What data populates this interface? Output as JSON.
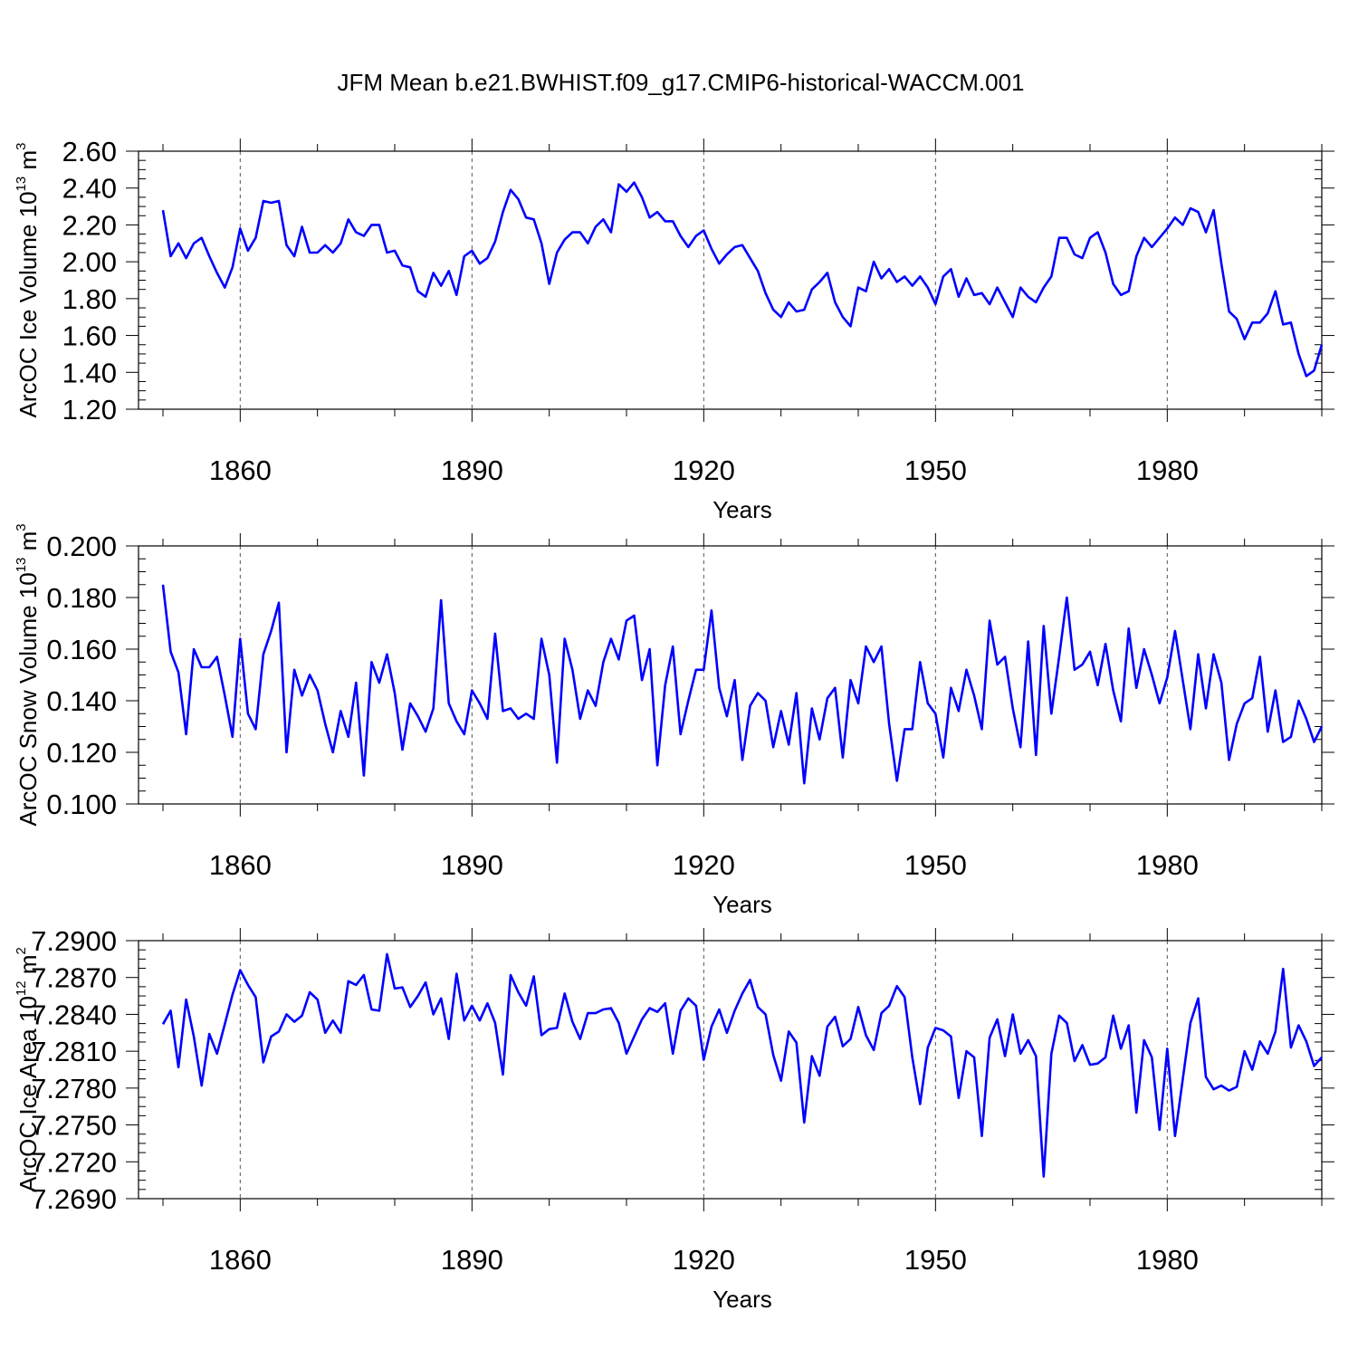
{
  "title": "JFM Mean b.e21.BWHIST.f09_g17.CMIP6-historical-WACCM.001",
  "colors": {
    "line": "#0000ff",
    "axis": "#000000",
    "grid": "#555555"
  },
  "chart_data": [
    {
      "type": "line",
      "ylabel": "ArcOC Ice Volume 10",
      "ylabel_exp": "13",
      "ylabel_unit": "m",
      "ylabel_unit_exp": "3",
      "xlabel": "Years",
      "xlim": [
        1850,
        2000
      ],
      "ylim": [
        1.2,
        2.6
      ],
      "xticks": [
        1860,
        1890,
        1920,
        1950,
        1980
      ],
      "xtick_labels": [
        "1860",
        "1890",
        "1920",
        "1950",
        "1980"
      ],
      "yticks": [
        1.2,
        1.4,
        1.6,
        1.8,
        2.0,
        2.2,
        2.4,
        2.6
      ],
      "ytick_labels": [
        "1.20",
        "1.40",
        "1.60",
        "1.80",
        "2.00",
        "2.20",
        "2.40",
        "2.60"
      ],
      "grid": "dashed vertical at x ticks",
      "x_start": 1850,
      "values": [
        2.28,
        2.03,
        2.1,
        2.02,
        2.1,
        2.13,
        2.03,
        1.94,
        1.86,
        1.97,
        2.18,
        2.06,
        2.13,
        2.33,
        2.32,
        2.33,
        2.09,
        2.03,
        2.19,
        2.05,
        2.05,
        2.09,
        2.05,
        2.1,
        2.23,
        2.16,
        2.14,
        2.2,
        2.2,
        2.05,
        2.06,
        1.98,
        1.97,
        1.84,
        1.81,
        1.94,
        1.87,
        1.95,
        1.82,
        2.03,
        2.06,
        1.99,
        2.02,
        2.11,
        2.27,
        2.39,
        2.34,
        2.24,
        2.23,
        2.1,
        1.88,
        2.05,
        2.12,
        2.16,
        2.16,
        2.1,
        2.19,
        2.23,
        2.16,
        2.42,
        2.38,
        2.43,
        2.35,
        2.24,
        2.27,
        2.22,
        2.22,
        2.14,
        2.08,
        2.14,
        2.17,
        2.07,
        1.99,
        2.04,
        2.08,
        2.09,
        2.02,
        1.95,
        1.83,
        1.74,
        1.7,
        1.78,
        1.73,
        1.74,
        1.85,
        1.89,
        1.94,
        1.78,
        1.7,
        1.65,
        1.86,
        1.84,
        2.0,
        1.91,
        1.96,
        1.89,
        1.92,
        1.87,
        1.92,
        1.86,
        1.77,
        1.92,
        1.96,
        1.81,
        1.91,
        1.82,
        1.83,
        1.77,
        1.86,
        1.78,
        1.7,
        1.86,
        1.81,
        1.78,
        1.86,
        1.92,
        2.13,
        2.13,
        2.04,
        2.02,
        2.13,
        2.16,
        2.05,
        1.88,
        1.82,
        1.84,
        2.03,
        2.13,
        2.08,
        2.13,
        2.18,
        2.24,
        2.2,
        2.29,
        2.27,
        2.16,
        2.28,
        1.99,
        1.73,
        1.69,
        1.58,
        1.67,
        1.67,
        1.72,
        1.84,
        1.66,
        1.67,
        1.5,
        1.38,
        1.41,
        1.55
      ]
    },
    {
      "type": "line",
      "ylabel": "ArcOC Snow Volume 10",
      "ylabel_exp": "13",
      "ylabel_unit": "m",
      "ylabel_unit_exp": "3",
      "xlabel": "Years",
      "xlim": [
        1850,
        2000
      ],
      "ylim": [
        0.1,
        0.2
      ],
      "xticks": [
        1860,
        1890,
        1920,
        1950,
        1980
      ],
      "xtick_labels": [
        "1860",
        "1890",
        "1920",
        "1950",
        "1980"
      ],
      "yticks": [
        0.1,
        0.12,
        0.14,
        0.16,
        0.18,
        0.2
      ],
      "ytick_labels": [
        "0.100",
        "0.120",
        "0.140",
        "0.160",
        "0.180",
        "0.200"
      ],
      "grid": "dashed vertical at x ticks",
      "x_start": 1850,
      "values": [
        0.185,
        0.159,
        0.151,
        0.127,
        0.16,
        0.153,
        0.153,
        0.157,
        0.142,
        0.126,
        0.164,
        0.135,
        0.129,
        0.158,
        0.167,
        0.178,
        0.12,
        0.152,
        0.142,
        0.15,
        0.144,
        0.131,
        0.12,
        0.136,
        0.126,
        0.147,
        0.111,
        0.155,
        0.147,
        0.158,
        0.143,
        0.121,
        0.139,
        0.134,
        0.128,
        0.137,
        0.179,
        0.139,
        0.132,
        0.127,
        0.144,
        0.139,
        0.133,
        0.166,
        0.136,
        0.137,
        0.133,
        0.135,
        0.133,
        0.164,
        0.15,
        0.116,
        0.164,
        0.152,
        0.133,
        0.144,
        0.138,
        0.155,
        0.164,
        0.156,
        0.171,
        0.173,
        0.148,
        0.16,
        0.115,
        0.146,
        0.161,
        0.127,
        0.14,
        0.152,
        0.152,
        0.175,
        0.145,
        0.134,
        0.148,
        0.117,
        0.138,
        0.143,
        0.14,
        0.122,
        0.136,
        0.123,
        0.143,
        0.108,
        0.137,
        0.125,
        0.141,
        0.145,
        0.118,
        0.148,
        0.139,
        0.161,
        0.155,
        0.161,
        0.131,
        0.109,
        0.129,
        0.129,
        0.155,
        0.139,
        0.135,
        0.118,
        0.145,
        0.136,
        0.152,
        0.142,
        0.129,
        0.171,
        0.154,
        0.157,
        0.137,
        0.122,
        0.163,
        0.119,
        0.169,
        0.135,
        0.157,
        0.18,
        0.152,
        0.154,
        0.159,
        0.146,
        0.162,
        0.144,
        0.132,
        0.168,
        0.145,
        0.16,
        0.15,
        0.139,
        0.149,
        0.167,
        0.148,
        0.129,
        0.158,
        0.137,
        0.158,
        0.147,
        0.117,
        0.131,
        0.139,
        0.141,
        0.157,
        0.128,
        0.144,
        0.124,
        0.126,
        0.14,
        0.133,
        0.124,
        0.13
      ]
    },
    {
      "type": "line",
      "ylabel": "ArcOC Ice Area 10",
      "ylabel_exp": "12",
      "ylabel_unit": "m",
      "ylabel_unit_exp": "2",
      "xlabel": "Years",
      "xlim": [
        1850,
        2000
      ],
      "ylim": [
        7.269,
        7.29
      ],
      "xticks": [
        1860,
        1890,
        1920,
        1950,
        1980
      ],
      "xtick_labels": [
        "1860",
        "1890",
        "1920",
        "1950",
        "1980"
      ],
      "yticks": [
        7.269,
        7.272,
        7.275,
        7.278,
        7.281,
        7.284,
        7.287,
        7.29
      ],
      "ytick_labels": [
        "7.2690",
        "7.2720",
        "7.2750",
        "7.2780",
        "7.2810",
        "7.2840",
        "7.2870",
        "7.2900"
      ],
      "grid": "dashed vertical at x ticks",
      "x_start": 1850,
      "values": [
        7.2832,
        7.2843,
        7.2797,
        7.2852,
        7.2822,
        7.2782,
        7.2824,
        7.2808,
        7.2832,
        7.2856,
        7.2876,
        7.2864,
        7.2854,
        7.2801,
        7.2822,
        7.2826,
        7.284,
        7.2834,
        7.2839,
        7.2858,
        7.2852,
        7.2825,
        7.2835,
        7.2825,
        7.2867,
        7.2864,
        7.2872,
        7.2844,
        7.2843,
        7.2889,
        7.2861,
        7.2862,
        7.2846,
        7.2855,
        7.2866,
        7.284,
        7.2853,
        7.282,
        7.2873,
        7.2835,
        7.2847,
        7.2835,
        7.2849,
        7.2833,
        7.2791,
        7.2872,
        7.2858,
        7.2847,
        7.2871,
        7.2823,
        7.2828,
        7.2829,
        7.2857,
        7.2834,
        7.282,
        7.2841,
        7.2841,
        7.2844,
        7.2845,
        7.2833,
        7.2808,
        7.2822,
        7.2836,
        7.2845,
        7.2842,
        7.2849,
        7.2808,
        7.2843,
        7.2853,
        7.2847,
        7.2803,
        7.283,
        7.2844,
        7.2825,
        7.2843,
        7.2857,
        7.2868,
        7.2846,
        7.284,
        7.2807,
        7.2786,
        7.2826,
        7.2817,
        7.2752,
        7.2806,
        7.279,
        7.283,
        7.2838,
        7.2814,
        7.282,
        7.2846,
        7.2823,
        7.2811,
        7.2841,
        7.2847,
        7.2863,
        7.2854,
        7.2805,
        7.2767,
        7.2813,
        7.2829,
        7.2827,
        7.2822,
        7.2772,
        7.281,
        7.2805,
        7.2741,
        7.2821,
        7.2836,
        7.2806,
        7.284,
        7.2808,
        7.2819,
        7.2806,
        7.2708,
        7.2808,
        7.2839,
        7.2833,
        7.2802,
        7.2815,
        7.2799,
        7.28,
        7.2805,
        7.2839,
        7.2812,
        7.2831,
        7.276,
        7.2819,
        7.2805,
        7.2746,
        7.2812,
        7.2741,
        7.2787,
        7.2833,
        7.2853,
        7.2789,
        7.2779,
        7.2782,
        7.2778,
        7.2781,
        7.281,
        7.2795,
        7.2818,
        7.2808,
        7.2826,
        7.2877,
        7.2813,
        7.2831,
        7.2818,
        7.2798,
        7.2805
      ]
    }
  ]
}
